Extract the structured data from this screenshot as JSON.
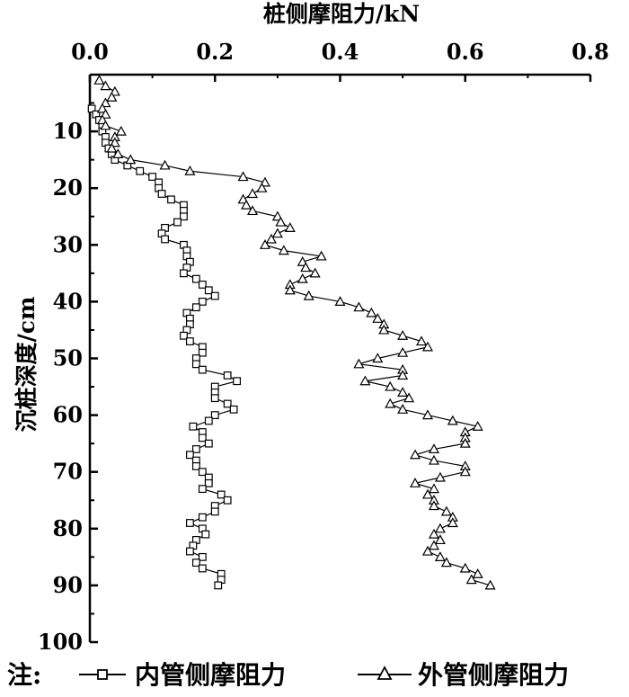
{
  "chart_data": {
    "type": "line",
    "title": "",
    "xlabel": "桩侧摩阻力/kN",
    "ylabel": "沉桩深度/cm",
    "xlim": [
      0.0,
      0.8
    ],
    "ylim": [
      0,
      100
    ],
    "x_axis_position": "top",
    "y_inverted": true,
    "x_ticks": [
      "0.0",
      "0.2",
      "0.4",
      "0.6",
      "0.8"
    ],
    "y_ticks": [
      "10",
      "20",
      "30",
      "40",
      "50",
      "60",
      "70",
      "80",
      "90",
      "100"
    ],
    "grid": false,
    "legend_position": "bottom",
    "legend_prefix": "注:",
    "series": [
      {
        "name": "内管侧摩阻力",
        "marker": "square",
        "points": [
          [
            0.003,
            6
          ],
          [
            0.01,
            7
          ],
          [
            0.015,
            8
          ],
          [
            0.02,
            9
          ],
          [
            0.02,
            10
          ],
          [
            0.025,
            11
          ],
          [
            0.025,
            12
          ],
          [
            0.03,
            13
          ],
          [
            0.035,
            14
          ],
          [
            0.04,
            15
          ],
          [
            0.06,
            16
          ],
          [
            0.08,
            17
          ],
          [
            0.1,
            18
          ],
          [
            0.11,
            19
          ],
          [
            0.11,
            20
          ],
          [
            0.115,
            21
          ],
          [
            0.13,
            22
          ],
          [
            0.15,
            23
          ],
          [
            0.15,
            24
          ],
          [
            0.15,
            25
          ],
          [
            0.14,
            26
          ],
          [
            0.12,
            27
          ],
          [
            0.115,
            28
          ],
          [
            0.12,
            29
          ],
          [
            0.15,
            30
          ],
          [
            0.155,
            31
          ],
          [
            0.155,
            32
          ],
          [
            0.16,
            33
          ],
          [
            0.155,
            34
          ],
          [
            0.15,
            35
          ],
          [
            0.17,
            36
          ],
          [
            0.18,
            37
          ],
          [
            0.19,
            38
          ],
          [
            0.2,
            39
          ],
          [
            0.18,
            40
          ],
          [
            0.17,
            41
          ],
          [
            0.155,
            42
          ],
          [
            0.16,
            43
          ],
          [
            0.16,
            44
          ],
          [
            0.155,
            45
          ],
          [
            0.15,
            46
          ],
          [
            0.16,
            47
          ],
          [
            0.18,
            48
          ],
          [
            0.18,
            49
          ],
          [
            0.17,
            50
          ],
          [
            0.17,
            51
          ],
          [
            0.18,
            52
          ],
          [
            0.22,
            53
          ],
          [
            0.235,
            54
          ],
          [
            0.2,
            55
          ],
          [
            0.2,
            56
          ],
          [
            0.2,
            57
          ],
          [
            0.22,
            58
          ],
          [
            0.23,
            59
          ],
          [
            0.2,
            60
          ],
          [
            0.19,
            61
          ],
          [
            0.165,
            62
          ],
          [
            0.18,
            63
          ],
          [
            0.18,
            64
          ],
          [
            0.19,
            65
          ],
          [
            0.17,
            66
          ],
          [
            0.16,
            67
          ],
          [
            0.17,
            68
          ],
          [
            0.17,
            69
          ],
          [
            0.18,
            70
          ],
          [
            0.19,
            71
          ],
          [
            0.19,
            72
          ],
          [
            0.18,
            73
          ],
          [
            0.21,
            74
          ],
          [
            0.22,
            75
          ],
          [
            0.2,
            76
          ],
          [
            0.2,
            77
          ],
          [
            0.18,
            78
          ],
          [
            0.16,
            79
          ],
          [
            0.18,
            80
          ],
          [
            0.185,
            81
          ],
          [
            0.17,
            82
          ],
          [
            0.165,
            83
          ],
          [
            0.16,
            84
          ],
          [
            0.18,
            85
          ],
          [
            0.17,
            86
          ],
          [
            0.18,
            87
          ],
          [
            0.21,
            88
          ],
          [
            0.21,
            89
          ],
          [
            0.205,
            90
          ]
        ]
      },
      {
        "name": "外管侧摩阻力",
        "marker": "triangle",
        "points": [
          [
            0.015,
            1
          ],
          [
            0.025,
            2
          ],
          [
            0.04,
            3
          ],
          [
            0.035,
            4
          ],
          [
            0.025,
            5
          ],
          [
            0.02,
            6
          ],
          [
            0.025,
            7
          ],
          [
            0.02,
            8
          ],
          [
            0.025,
            9
          ],
          [
            0.05,
            10
          ],
          [
            0.04,
            11
          ],
          [
            0.04,
            12
          ],
          [
            0.035,
            13
          ],
          [
            0.045,
            14
          ],
          [
            0.065,
            15
          ],
          [
            0.12,
            16
          ],
          [
            0.16,
            17
          ],
          [
            0.245,
            18
          ],
          [
            0.28,
            19
          ],
          [
            0.275,
            20
          ],
          [
            0.26,
            21
          ],
          [
            0.245,
            22
          ],
          [
            0.25,
            23
          ],
          [
            0.26,
            24
          ],
          [
            0.3,
            25
          ],
          [
            0.305,
            26
          ],
          [
            0.32,
            27
          ],
          [
            0.3,
            28
          ],
          [
            0.29,
            29
          ],
          [
            0.28,
            30
          ],
          [
            0.31,
            31
          ],
          [
            0.37,
            32
          ],
          [
            0.34,
            33
          ],
          [
            0.345,
            34
          ],
          [
            0.36,
            35
          ],
          [
            0.34,
            36
          ],
          [
            0.32,
            37
          ],
          [
            0.32,
            38
          ],
          [
            0.35,
            39
          ],
          [
            0.4,
            40
          ],
          [
            0.43,
            41
          ],
          [
            0.45,
            42
          ],
          [
            0.46,
            43
          ],
          [
            0.47,
            44
          ],
          [
            0.47,
            45
          ],
          [
            0.5,
            46
          ],
          [
            0.53,
            47
          ],
          [
            0.54,
            48
          ],
          [
            0.5,
            49
          ],
          [
            0.46,
            50
          ],
          [
            0.43,
            51
          ],
          [
            0.5,
            52
          ],
          [
            0.5,
            53
          ],
          [
            0.44,
            54
          ],
          [
            0.48,
            55
          ],
          [
            0.5,
            56
          ],
          [
            0.51,
            57
          ],
          [
            0.48,
            58
          ],
          [
            0.5,
            59
          ],
          [
            0.54,
            60
          ],
          [
            0.58,
            61
          ],
          [
            0.62,
            62
          ],
          [
            0.6,
            63
          ],
          [
            0.6,
            64
          ],
          [
            0.6,
            65
          ],
          [
            0.55,
            66
          ],
          [
            0.52,
            67
          ],
          [
            0.55,
            68
          ],
          [
            0.6,
            69
          ],
          [
            0.6,
            70
          ],
          [
            0.56,
            71
          ],
          [
            0.52,
            72
          ],
          [
            0.55,
            73
          ],
          [
            0.54,
            74
          ],
          [
            0.55,
            75
          ],
          [
            0.55,
            76
          ],
          [
            0.57,
            77
          ],
          [
            0.58,
            78
          ],
          [
            0.58,
            79
          ],
          [
            0.56,
            80
          ],
          [
            0.55,
            81
          ],
          [
            0.56,
            82
          ],
          [
            0.55,
            83
          ],
          [
            0.54,
            84
          ],
          [
            0.56,
            85
          ],
          [
            0.57,
            86
          ],
          [
            0.6,
            87
          ],
          [
            0.62,
            88
          ],
          [
            0.61,
            89
          ],
          [
            0.64,
            90
          ]
        ]
      }
    ]
  }
}
